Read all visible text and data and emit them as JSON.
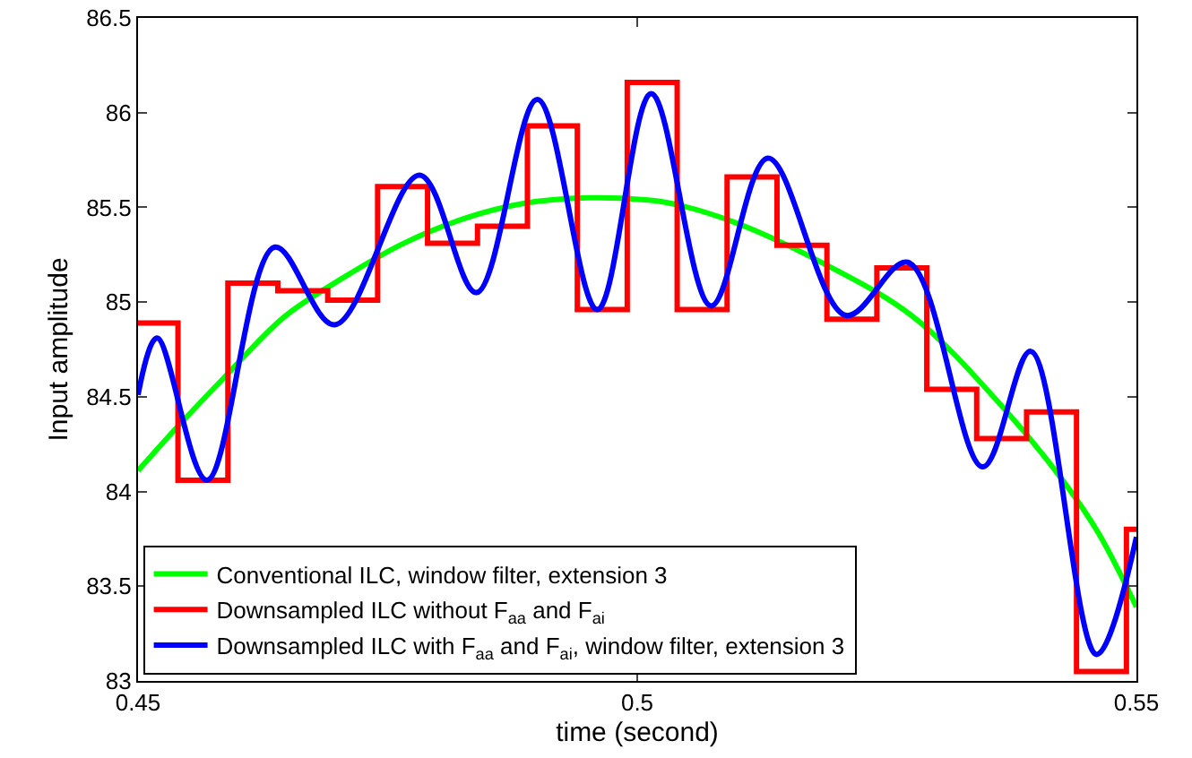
{
  "chart_data": {
    "type": "line",
    "xlabel": "time (second)",
    "ylabel": "Input amplitude",
    "xlim": [
      0.45,
      0.55
    ],
    "xticks": [
      0.45,
      0.5,
      0.55
    ],
    "ylim": [
      83,
      86.5
    ],
    "yticks": [
      83,
      83.5,
      84,
      84.5,
      85,
      85.5,
      86,
      86.5
    ],
    "grid": false,
    "legend": "bottom left",
    "marker": "none",
    "line_style": "solid",
    "series": [
      {
        "name": "Conventional ILC, window filter, extension 3",
        "color": "#00ff00",
        "type": "line",
        "x": [
          0.45,
          0.4541,
          0.4586,
          0.4646,
          0.4706,
          0.4766,
          0.4826,
          0.4885,
          0.4951,
          0.5008,
          0.5035,
          0.5098,
          0.5188,
          0.5277,
          0.5367,
          0.5426,
          0.5462,
          0.55
        ],
        "values": [
          84.11,
          84.35,
          84.6,
          84.92,
          85.13,
          85.31,
          85.44,
          85.52,
          85.55,
          85.54,
          85.52,
          85.42,
          85.2,
          84.92,
          84.44,
          84.06,
          83.78,
          83.39
        ]
      },
      {
        "name": "Downsampled ILC without F$_{aa}$ and F$_{ai}$",
        "color": "#ff0000",
        "type": "step",
        "x": [
          0.45,
          0.454,
          0.459,
          0.464,
          0.469,
          0.474,
          0.479,
          0.484,
          0.489,
          0.494,
          0.499,
          0.504,
          0.509,
          0.514,
          0.519,
          0.524,
          0.529,
          0.534,
          0.539,
          0.544,
          0.549,
          0.55
        ],
        "values": [
          84.89,
          84.06,
          85.1,
          85.06,
          85.01,
          85.61,
          85.31,
          85.4,
          85.93,
          84.96,
          86.16,
          84.96,
          85.66,
          85.3,
          84.91,
          85.18,
          84.54,
          84.28,
          84.42,
          83.05,
          83.8,
          83.8
        ]
      },
      {
        "name": "Downsampled ILC with F$_{aa}$ and F$_{ai}$, window filter, extension 3",
        "color": "#0000ff",
        "type": "line",
        "x": [
          0.45,
          0.4519,
          0.4569,
          0.4637,
          0.4697,
          0.4782,
          0.4839,
          0.49,
          0.496,
          0.5014,
          0.5074,
          0.5131,
          0.5209,
          0.5271,
          0.5346,
          0.5394,
          0.546,
          0.55
        ],
        "values": [
          84.51,
          84.81,
          84.06,
          85.29,
          84.88,
          85.67,
          85.05,
          86.07,
          84.96,
          86.1,
          84.98,
          85.76,
          84.93,
          85.21,
          84.13,
          84.74,
          83.14,
          83.76
        ]
      }
    ]
  }
}
